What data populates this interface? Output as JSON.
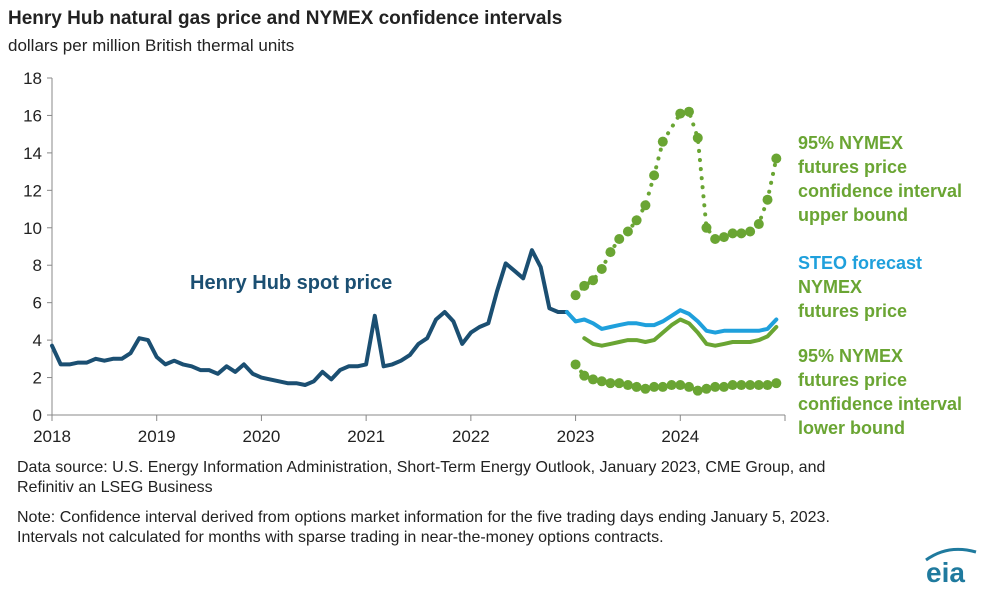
{
  "header": {
    "title": "Henry Hub natural gas price and NYMEX confidence intervals",
    "subtitle": "dollars per million British thermal units"
  },
  "footer": {
    "source": "Data source: U.S. Energy Information Administration, Short-Term Energy Outlook, January 2023, CME Group, and Refinitiv an LSEG Business",
    "note": "Note: Confidence interval derived from options market information for the five trading days ending January 5, 2023. Intervals not calculated for months with sparse trading in near-the-money options contracts."
  },
  "logo": {
    "text": "eia",
    "color": "#1f7a9e"
  },
  "colors": {
    "henry_hub": "#1b4f72",
    "steo": "#1fa0dc",
    "nymex": "#6aa533",
    "axis": "#888888",
    "text": "#222222"
  },
  "chart_data": {
    "type": "line",
    "title": "Henry Hub natural gas price and NYMEX confidence intervals",
    "ylabel": "dollars per million British thermal units",
    "ylim": [
      0,
      18
    ],
    "yticks": [
      0,
      2,
      4,
      6,
      8,
      10,
      12,
      14,
      16,
      18
    ],
    "xlim": [
      2018.0,
      2025.0
    ],
    "xticks": [
      "2018",
      "2019",
      "2020",
      "2021",
      "2022",
      "2023",
      "2024"
    ],
    "grid": false,
    "series": [
      {
        "name": "Henry Hub spot price",
        "style": "solid",
        "color": "#1b4f72",
        "x": [
          2018.0,
          2018.083,
          2018.167,
          2018.25,
          2018.333,
          2018.417,
          2018.5,
          2018.583,
          2018.667,
          2018.75,
          2018.833,
          2018.917,
          2019.0,
          2019.083,
          2019.167,
          2019.25,
          2019.333,
          2019.417,
          2019.5,
          2019.583,
          2019.667,
          2019.75,
          2019.833,
          2019.917,
          2020.0,
          2020.083,
          2020.167,
          2020.25,
          2020.333,
          2020.417,
          2020.5,
          2020.583,
          2020.667,
          2020.75,
          2020.833,
          2020.917,
          2021.0,
          2021.083,
          2021.167,
          2021.25,
          2021.333,
          2021.417,
          2021.5,
          2021.583,
          2021.667,
          2021.75,
          2021.833,
          2021.917,
          2022.0,
          2022.083,
          2022.167,
          2022.25,
          2022.333,
          2022.417,
          2022.5,
          2022.583,
          2022.667,
          2022.75,
          2022.833,
          2022.917
        ],
        "y": [
          3.7,
          2.7,
          2.7,
          2.8,
          2.8,
          3.0,
          2.9,
          3.0,
          3.0,
          3.3,
          4.1,
          4.0,
          3.1,
          2.7,
          2.9,
          2.7,
          2.6,
          2.4,
          2.4,
          2.2,
          2.6,
          2.3,
          2.7,
          2.2,
          2.0,
          1.9,
          1.8,
          1.7,
          1.7,
          1.6,
          1.8,
          2.3,
          1.9,
          2.4,
          2.6,
          2.6,
          2.7,
          5.3,
          2.6,
          2.7,
          2.9,
          3.2,
          3.8,
          4.1,
          5.1,
          5.5,
          5.0,
          3.8,
          4.4,
          4.7,
          4.9,
          6.6,
          8.1,
          7.7,
          7.3,
          8.8,
          7.9,
          5.7,
          5.5,
          5.5
        ]
      },
      {
        "name": "STEO forecast",
        "style": "solid",
        "color": "#1fa0dc",
        "x": [
          2022.917,
          2023.0,
          2023.083,
          2023.167,
          2023.25,
          2023.333,
          2023.417,
          2023.5,
          2023.583,
          2023.667,
          2023.75,
          2023.833,
          2023.917,
          2024.0,
          2024.083,
          2024.167,
          2024.25,
          2024.333,
          2024.417,
          2024.5,
          2024.583,
          2024.667,
          2024.75,
          2024.833,
          2024.917
        ],
        "y": [
          5.5,
          5.0,
          5.1,
          4.9,
          4.6,
          4.7,
          4.8,
          4.9,
          4.9,
          4.8,
          4.8,
          5.0,
          5.3,
          5.6,
          5.4,
          5.0,
          4.5,
          4.4,
          4.5,
          4.5,
          4.5,
          4.5,
          4.5,
          4.6,
          5.1
        ]
      },
      {
        "name": "NYMEX futures price",
        "style": "solid",
        "color": "#6aa533",
        "x": [
          2023.083,
          2023.167,
          2023.25,
          2023.333,
          2023.417,
          2023.5,
          2023.583,
          2023.667,
          2023.75,
          2023.833,
          2023.917,
          2024.0,
          2024.083,
          2024.167,
          2024.25,
          2024.333,
          2024.417,
          2024.5,
          2024.583,
          2024.667,
          2024.75,
          2024.833,
          2024.917
        ],
        "y": [
          4.1,
          3.8,
          3.7,
          3.8,
          3.9,
          4.0,
          4.0,
          3.9,
          4.0,
          4.4,
          4.8,
          5.1,
          4.9,
          4.4,
          3.8,
          3.7,
          3.8,
          3.9,
          3.9,
          3.9,
          4.0,
          4.2,
          4.7
        ]
      },
      {
        "name": "95% NYMEX futures price confidence interval upper bound",
        "style": "dotted",
        "color": "#6aa533",
        "x": [
          2023.0,
          2023.083,
          2023.167,
          2023.25,
          2023.333,
          2023.417,
          2023.5,
          2023.583,
          2023.667,
          2023.75,
          2023.833,
          2023.917,
          2024.0,
          2024.083,
          2024.167,
          2024.25,
          2024.333,
          2024.417,
          2024.5,
          2024.583,
          2024.667,
          2024.75,
          2024.833,
          2024.917
        ],
        "y": [
          6.4,
          6.9,
          7.2,
          7.8,
          8.7,
          9.4,
          9.8,
          10.4,
          11.2,
          12.8,
          14.6,
          null,
          16.1,
          16.2,
          14.8,
          10.0,
          9.4,
          9.5,
          9.7,
          9.7,
          9.8,
          10.2,
          11.5,
          13.7
        ]
      },
      {
        "name": "95% NYMEX futures price confidence interval lower bound",
        "style": "dotted",
        "color": "#6aa533",
        "x": [
          2023.0,
          2023.083,
          2023.167,
          2023.25,
          2023.333,
          2023.417,
          2023.5,
          2023.583,
          2023.667,
          2023.75,
          2023.833,
          2023.917,
          2024.0,
          2024.083,
          2024.167,
          2024.25,
          2024.333,
          2024.417,
          2024.5,
          2024.583,
          2024.667,
          2024.75,
          2024.833,
          2024.917
        ],
        "y": [
          2.7,
          2.1,
          1.9,
          1.8,
          1.7,
          1.7,
          1.6,
          1.5,
          1.4,
          1.5,
          1.5,
          1.6,
          1.6,
          1.5,
          1.3,
          1.4,
          1.5,
          1.5,
          1.6,
          1.6,
          1.6,
          1.6,
          1.6,
          1.7
        ]
      }
    ],
    "annotations": [
      {
        "id": "hh",
        "lines": [
          "Henry Hub spot price"
        ],
        "color": "#1b4f72"
      },
      {
        "id": "upper",
        "lines": [
          "95% NYMEX",
          "futures price",
          "confidence interval",
          "upper bound"
        ],
        "color": "#6aa533"
      },
      {
        "id": "steo",
        "lines": [
          [
            {
              "text": "STEO forecast",
              "color": "#1fa0dc"
            }
          ],
          [
            {
              "text": "NYMEX",
              "color": "#6aa533"
            }
          ],
          [
            {
              "text": "futures price",
              "color": "#6aa533"
            }
          ]
        ]
      },
      {
        "id": "lower",
        "lines": [
          "95% NYMEX",
          "futures price",
          "confidence interval",
          "lower bound"
        ],
        "color": "#6aa533"
      }
    ]
  }
}
